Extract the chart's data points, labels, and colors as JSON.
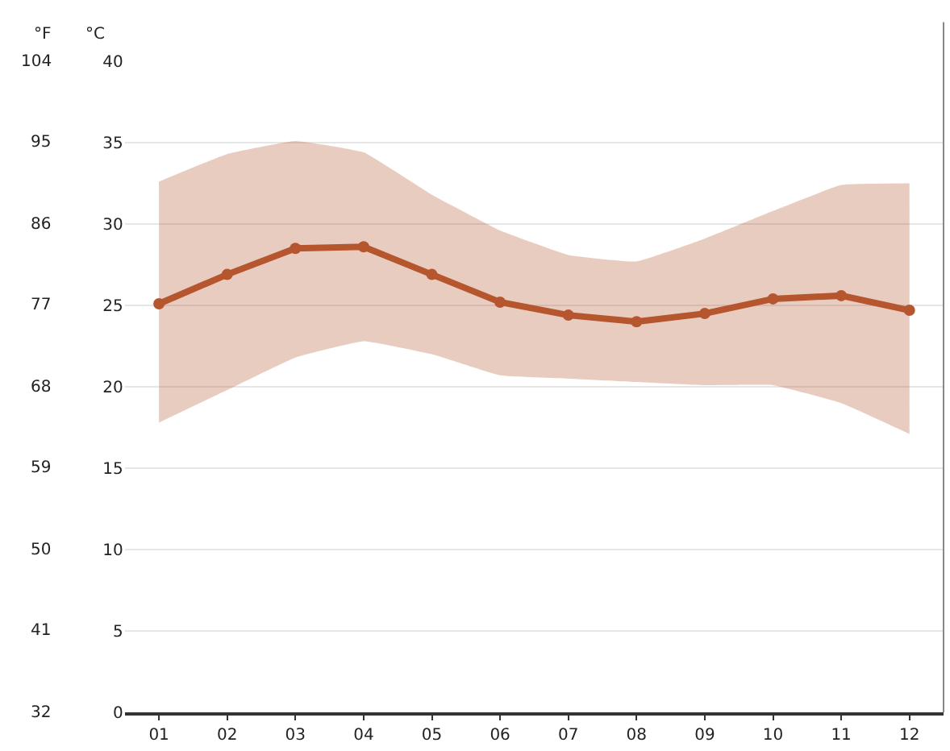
{
  "chart_data": {
    "type": "line",
    "categories": [
      "01",
      "02",
      "03",
      "04",
      "05",
      "06",
      "07",
      "08",
      "09",
      "10",
      "11",
      "12"
    ],
    "ylabel": "°C",
    "y2label": "°F",
    "ylim": [
      0,
      40
    ],
    "yticks": [
      0,
      5,
      10,
      15,
      20,
      25,
      30,
      35,
      40
    ],
    "y2lim": [
      32,
      104
    ],
    "y2ticks": [
      32,
      41,
      50,
      59,
      68,
      77,
      86,
      95,
      104
    ],
    "series": [
      {
        "color": "#b5562f",
        "values": [
          25.1,
          26.9,
          28.5,
          28.6,
          26.9,
          25.2,
          24.4,
          24.0,
          24.5,
          25.4,
          25.6,
          24.7
        ],
        "lower": [
          17.8,
          19.8,
          21.8,
          22.8,
          22.0,
          20.7,
          20.5,
          20.3,
          20.1,
          20.1,
          19.0,
          17.1
        ],
        "upper": [
          32.6,
          34.3,
          35.1,
          34.4,
          31.8,
          29.6,
          28.1,
          27.7,
          29.1,
          30.8,
          32.4,
          32.5
        ]
      }
    ],
    "grid": "y",
    "marker": "circle",
    "line_style": "solid"
  }
}
